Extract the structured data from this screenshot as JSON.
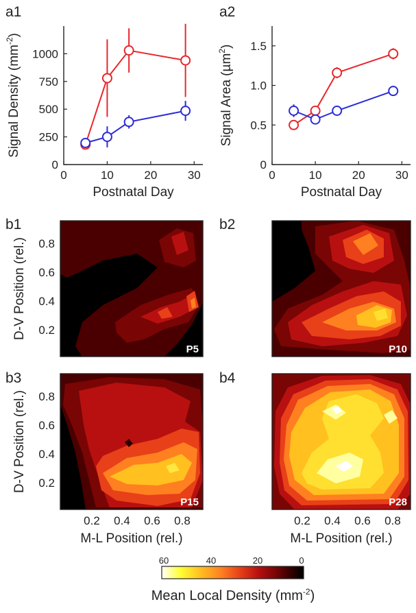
{
  "chart_data": [
    {
      "panel": "a1",
      "type": "line",
      "xlabel": "Postnatal Day",
      "ylabel": "Signal Density (mm",
      "ylabel_sup": "-2",
      "ylabel_close": ")",
      "xlim": [
        0,
        32
      ],
      "ylim": [
        0,
        1250
      ],
      "xticks": [
        0,
        10,
        20,
        30
      ],
      "yticks": [
        0,
        250,
        500,
        750,
        1000
      ],
      "series": [
        {
          "color": "#e8262b",
          "x": [
            5,
            10,
            15,
            28
          ],
          "y": [
            180,
            780,
            1030,
            940
          ],
          "err": [
            15,
            350,
            200,
            330
          ]
        },
        {
          "color": "#2b2bd8",
          "x": [
            5,
            10,
            15,
            28
          ],
          "y": [
            195,
            250,
            385,
            485
          ],
          "err": [
            25,
            95,
            60,
            90
          ]
        }
      ]
    },
    {
      "panel": "a2",
      "type": "line",
      "xlabel": "Postnatal Day",
      "ylabel": "Signal Area (µm",
      "ylabel_sup": "2",
      "ylabel_close": ")",
      "xlim": [
        0,
        32
      ],
      "ylim": [
        0,
        1.75
      ],
      "xticks": [
        0,
        10,
        20,
        30
      ],
      "yticks": [
        0,
        0.5,
        1.0,
        1.5
      ],
      "ytick_labels": [
        "0",
        "0.5",
        "1.0",
        "1.5"
      ],
      "series": [
        {
          "color": "#e8262b",
          "x": [
            5,
            10,
            15,
            28
          ],
          "y": [
            0.5,
            0.68,
            1.16,
            1.4
          ],
          "err": [
            0.02,
            0.04,
            0.07,
            0.07
          ]
        },
        {
          "color": "#2b2bd8",
          "x": [
            5,
            10,
            15,
            28
          ],
          "y": [
            0.68,
            0.57,
            0.68,
            0.93
          ],
          "err": [
            0.08,
            0.05,
            0.03,
            0.06
          ]
        }
      ]
    },
    {
      "panel": "b",
      "type": "heatmap",
      "xlabel": "M-L Position (rel.)",
      "ylabel": "D-V Position (rel.)",
      "xticks": [
        "0.2",
        "0.4",
        "0.6",
        "0.8"
      ],
      "yticks": [
        "0.2",
        "0.4",
        "0.6",
        "0.8"
      ],
      "colorbar": {
        "label": "Mean Local Density (mm",
        "label_sup": "-2",
        "label_close": ")",
        "ticks": [
          "60",
          "40",
          "20",
          "0"
        ],
        "range": [
          60,
          0
        ],
        "colors": [
          "#ffffff",
          "#ffff33",
          "#ffc020",
          "#ff8020",
          "#e84018",
          "#b81010",
          "#7a0505",
          "#4a0000",
          "#000000"
        ]
      },
      "maps": [
        {
          "panel": "b1",
          "age": "P5"
        },
        {
          "panel": "b2",
          "age": "P10"
        },
        {
          "panel": "b3",
          "age": "P15"
        },
        {
          "panel": "b4",
          "age": "P28"
        }
      ]
    }
  ],
  "palette": {
    "red": "#e8262b",
    "blue": "#2b2bd8",
    "black": "#000000",
    "darkred": "#4a0000",
    "maroon": "#7a0505",
    "crimson": "#b81010",
    "redorange": "#e84018",
    "orange": "#ff8020",
    "amber": "#ffc020",
    "yellow": "#ffff33",
    "white": "#ffffff"
  }
}
